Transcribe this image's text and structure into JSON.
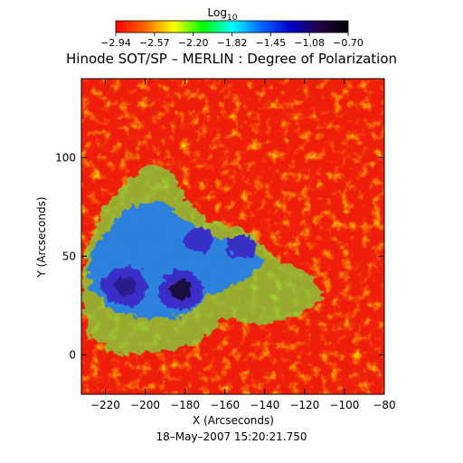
{
  "chart_data": {
    "type": "heatmap",
    "title": "Hinode SOT/SP – MERLIN : Degree of Polarization",
    "xlabel": "X (Arcseconds)",
    "ylabel": "Y (Arcseconds)",
    "footer": "18–May–2007 15:20:21.750",
    "xlim": [
      -232,
      -80
    ],
    "ylim": [
      -20,
      140
    ],
    "xticks": [
      -220,
      -200,
      -180,
      -160,
      -140,
      -120,
      -100,
      -80
    ],
    "xtick_labels": [
      "−220",
      "−200",
      "−180",
      "−160",
      "−140",
      "−120",
      "−100",
      "−80"
    ],
    "yticks": [
      0,
      50,
      100
    ],
    "ytick_labels": [
      "0",
      "50",
      "100"
    ],
    "colorbar": {
      "label_main": "Log",
      "label_sub": "10",
      "min": -2.94,
      "max": -0.7,
      "tick_labels": [
        "−2.94",
        "−2.57",
        "−2.20",
        "−1.82",
        "−1.45",
        "−1.08",
        "−0.70"
      ],
      "colors": [
        "#ff0000",
        "#ff6600",
        "#ffff00",
        "#00ff00",
        "#00ffff",
        "#0066ff",
        "#0000cc",
        "#220044",
        "#000000"
      ]
    },
    "features": [
      {
        "name": "sunspot-umbra-1",
        "x": -210,
        "y": 35,
        "level": -0.9
      },
      {
        "name": "sunspot-umbra-2",
        "x": -182,
        "y": 33,
        "level": -0.8
      },
      {
        "name": "pore-1",
        "x": -173,
        "y": 58,
        "level": -1.0
      },
      {
        "name": "pore-2",
        "x": -152,
        "y": 55,
        "level": -1.0
      }
    ]
  }
}
